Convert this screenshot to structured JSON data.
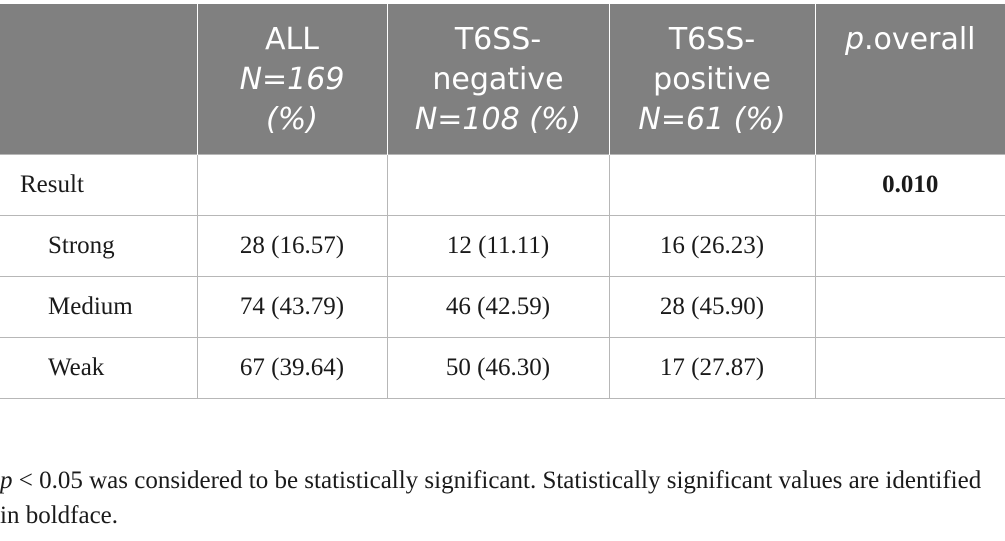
{
  "table": {
    "header": {
      "col0": "",
      "col1": {
        "line1": "ALL",
        "line2": "N=169",
        "line3": "(%)"
      },
      "col2": {
        "line1": "T6SS-",
        "line2": "negative",
        "line3": "N=108 (%)"
      },
      "col3": {
        "line1": "T6SS-",
        "line2": "positive",
        "line3": "N=61 (%)"
      },
      "col4": {
        "p": "p",
        "rest": ".overall"
      }
    },
    "rows": [
      {
        "label": "Result",
        "all": "",
        "negative": "",
        "positive": "",
        "p_overall": "0.010"
      },
      {
        "label": "Strong",
        "all": "28 (16.57)",
        "negative": "12 (11.11)",
        "positive": "16 (26.23)",
        "p_overall": ""
      },
      {
        "label": "Medium",
        "all": "74 (43.79)",
        "negative": "46 (42.59)",
        "positive": "28 (45.90)",
        "p_overall": ""
      },
      {
        "label": "Weak",
        "all": "67 (39.64)",
        "negative": "50 (46.30)",
        "positive": "17 (27.87)",
        "p_overall": ""
      }
    ]
  },
  "footnote": {
    "p": "p",
    "text": " < 0.05 was considered to be statistically significant. Statistically significant values are identified in boldface."
  },
  "colors": {
    "header_bg": "#808080",
    "header_text": "#ffffff",
    "border": "#b7b7b7",
    "body_text": "#1a1a1a"
  }
}
